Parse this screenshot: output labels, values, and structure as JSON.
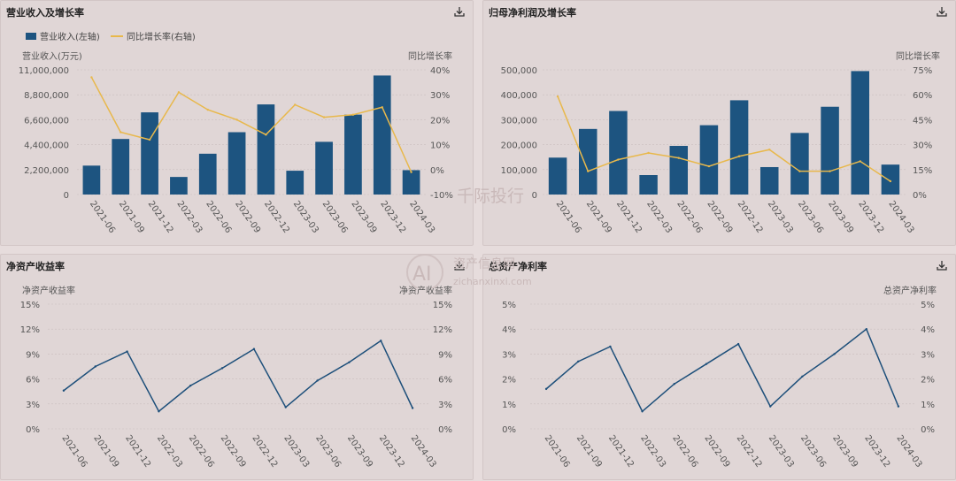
{
  "colors": {
    "bar": "#1d5480",
    "line_growth": "#e8b84b",
    "line_ratio": "#1d4f7a",
    "grid": "#c9bebe",
    "text": "#555555"
  },
  "watermark": {
    "cn": "千际投行",
    "cn2": "资产信息网",
    "en": "zichanxinxi.com",
    "logo": "AI"
  },
  "chart_data": [
    {
      "id": "revenue",
      "type": "bar+line",
      "title": "营业收入及增长率",
      "legend": [
        "营业收入(左轴)",
        "同比增长率(右轴)"
      ],
      "ylabel_left": "营业收入(万元)",
      "ylabel_right": "同比增长率",
      "categories": [
        "2021-06",
        "2021-09",
        "2021-12",
        "2022-03",
        "2022-06",
        "2022-09",
        "2022-12",
        "2023-03",
        "2023-06",
        "2023-09",
        "2023-12",
        "2024-03"
      ],
      "bar_values": [
        2550000,
        4900000,
        7250000,
        1550000,
        3600000,
        5500000,
        7950000,
        2100000,
        4650000,
        7050000,
        10500000,
        2150000
      ],
      "line_values": [
        37,
        15,
        12,
        31,
        24,
        20,
        14,
        26,
        21,
        22,
        25,
        -1
      ],
      "ylim_left": [
        0,
        11000000
      ],
      "yticks_left": [
        "0",
        "2,200,000",
        "4,400,000",
        "6,600,000",
        "8,800,000",
        "11,000,000"
      ],
      "ylim_right": [
        -10,
        40
      ],
      "yticks_right": [
        "-10%",
        "0%",
        "10%",
        "20%",
        "30%",
        "40%"
      ]
    },
    {
      "id": "net_profit",
      "type": "bar+line",
      "title": "归母净利润及增长率",
      "legend": [
        "归母净利润(左轴)",
        "同比增长率(右轴)"
      ],
      "ylabel_left": "归母净利润(万元)",
      "ylabel_right": "同比增长率",
      "categories": [
        "2021-06",
        "2021-09",
        "2021-12",
        "2022-03",
        "2022-06",
        "2022-09",
        "2022-12",
        "2023-03",
        "2023-06",
        "2023-09",
        "2023-12",
        "2024-03"
      ],
      "bar_values": [
        148000,
        263000,
        335000,
        78000,
        195000,
        278000,
        378000,
        110000,
        247000,
        352000,
        495000,
        120000
      ],
      "line_values": [
        59,
        14,
        21,
        25,
        22,
        17,
        23,
        27,
        14,
        14,
        20,
        8
      ],
      "ylim_left": [
        0,
        500000
      ],
      "yticks_left": [
        "0",
        "100,000",
        "200,000",
        "300,000",
        "400,000",
        "500,000"
      ],
      "ylim_right": [
        0,
        75
      ],
      "yticks_right": [
        "0%",
        "15%",
        "30%",
        "45%",
        "60%",
        "75%"
      ]
    },
    {
      "id": "roe",
      "type": "line",
      "title": "净资产收益率",
      "ylabel_left": "净资产收益率",
      "ylabel_right": "净资产收益率",
      "categories": [
        "2021-06",
        "2021-09",
        "2021-12",
        "2022-03",
        "2022-06",
        "2022-09",
        "2022-12",
        "2023-03",
        "2023-06",
        "2023-09",
        "2023-12",
        "2024-03"
      ],
      "values": [
        4.6,
        7.5,
        9.3,
        2.1,
        5.2,
        7.3,
        9.6,
        2.6,
        5.8,
        8.0,
        10.6,
        2.5
      ],
      "ylim": [
        0,
        15
      ],
      "yticks_left": [
        "0%",
        "3%",
        "6%",
        "9%",
        "12%",
        "15%"
      ],
      "yticks_right": [
        "0%",
        "3%",
        "6%",
        "9%",
        "12%",
        "15%"
      ]
    },
    {
      "id": "roa",
      "type": "line",
      "title": "总资产净利率",
      "ylabel_left": "总资产净利率",
      "ylabel_right": "总资产净利率",
      "categories": [
        "2021-06",
        "2021-09",
        "2021-12",
        "2022-03",
        "2022-06",
        "2022-09",
        "2022-12",
        "2023-03",
        "2023-06",
        "2023-09",
        "2023-12",
        "2024-03"
      ],
      "values": [
        1.6,
        2.7,
        3.3,
        0.7,
        1.8,
        2.6,
        3.4,
        0.9,
        2.1,
        3.0,
        4.0,
        0.9
      ],
      "ylim": [
        0,
        5
      ],
      "yticks_left": [
        "0%",
        "1%",
        "2%",
        "3%",
        "4%",
        "5%"
      ],
      "yticks_right": [
        "0%",
        "1%",
        "2%",
        "3%",
        "4%",
        "5%"
      ]
    }
  ]
}
